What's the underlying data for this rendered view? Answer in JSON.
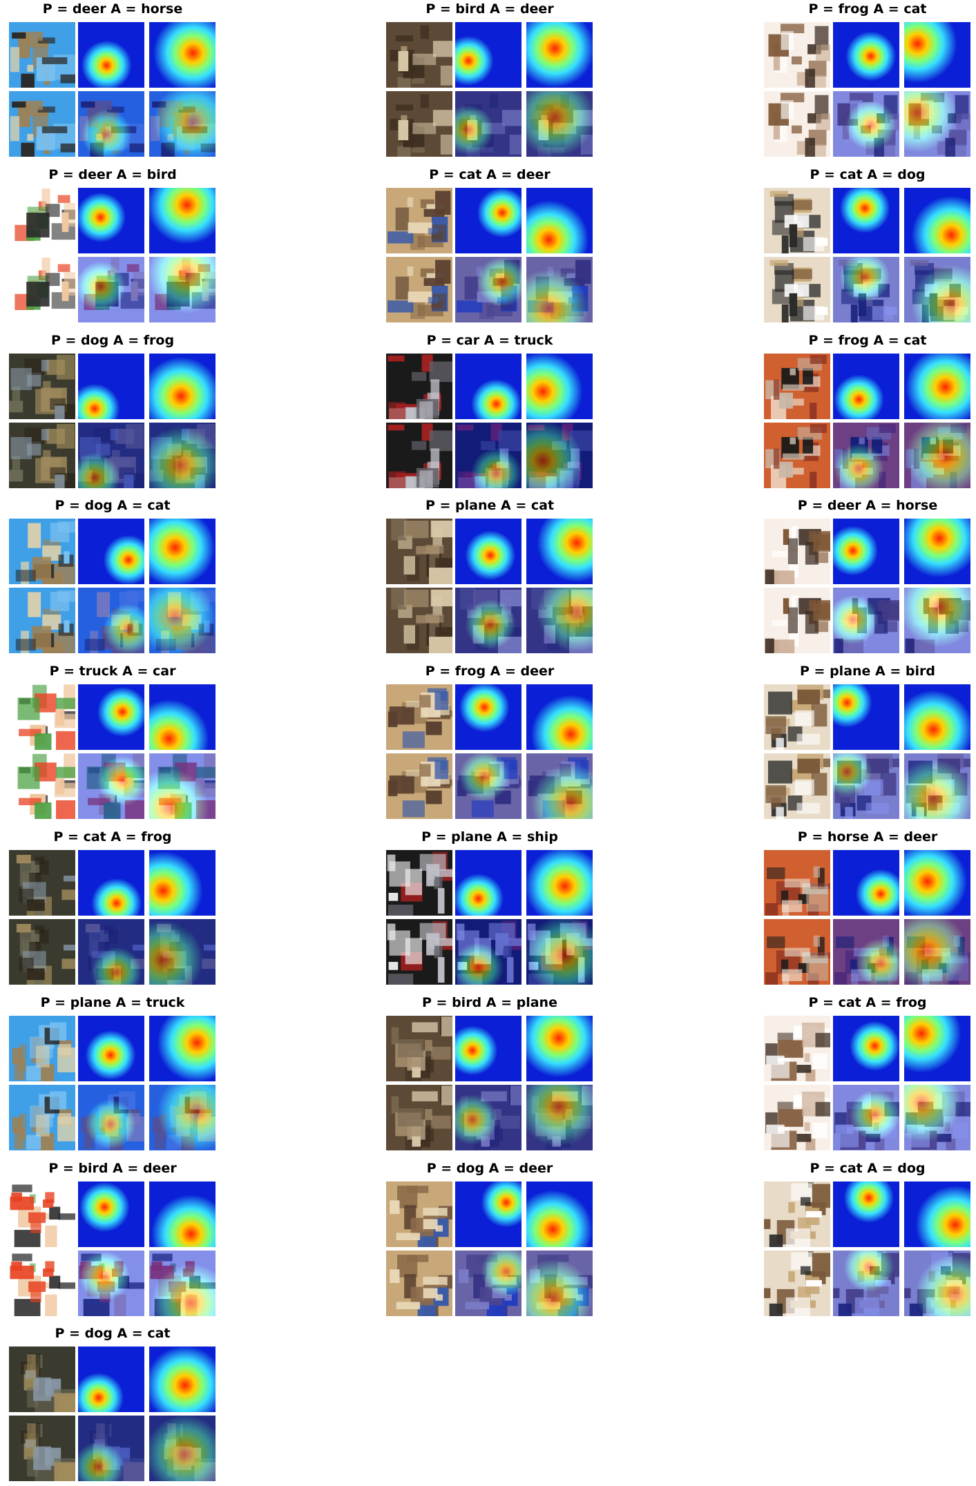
{
  "panels": [
    {
      "title": "P = deer A = horse"
    },
    {
      "title": "P = bird A = deer"
    },
    {
      "title": "P = frog A = cat"
    },
    {
      "title": "P = deer A = bird"
    },
    {
      "title": "P = cat A = deer"
    },
    {
      "title": "P = cat A = dog"
    },
    {
      "title": "P = dog A = frog"
    },
    {
      "title": "P = car A = truck"
    },
    {
      "title": "P = frog A = cat"
    },
    {
      "title": "P = dog A = cat"
    },
    {
      "title": "P = plane A = cat"
    },
    {
      "title": "P = deer A = horse"
    },
    {
      "title": "P = truck A = car"
    },
    {
      "title": "P = frog A = deer"
    },
    {
      "title": "P = plane A = bird"
    },
    {
      "title": "P = cat A = frog"
    },
    {
      "title": "P = plane A = ship"
    },
    {
      "title": "P = horse A = deer"
    },
    {
      "title": "P = plane A = truck"
    },
    {
      "title": "P = bird A = plane"
    },
    {
      "title": "P = cat A = frog"
    },
    {
      "title": "P = bird A = deer"
    },
    {
      "title": "P = dog A = deer"
    },
    {
      "title": "P = cat A = dog"
    },
    {
      "title": "P = dog A = cat"
    }
  ],
  "colors": {
    "heatmap_low": "#0a1fd6",
    "heatmap_mid": "#36e0ff",
    "heatmap_high": "#ff2200",
    "background": "#ffffff"
  }
}
